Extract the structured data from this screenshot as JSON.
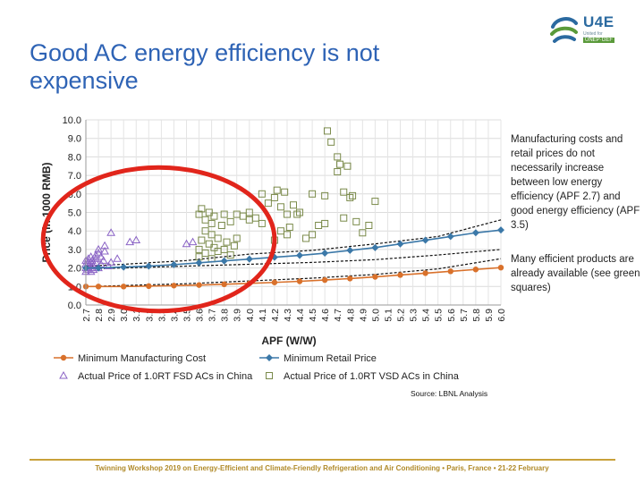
{
  "slide": {
    "title": "Good AC energy efficiency is not expensive",
    "logo": {
      "main": "U4E",
      "sub": "United for Efficiency",
      "tag": "UNEP·GEF"
    },
    "note1": "Manufacturing costs and retail prices do not necessarily increase between low energy efficiency (APF 2.7) and good energy efficiency (APF 3.5)",
    "note2": "Many efficient products are already available (see green squares)",
    "source": "Source: LBNL Analysis",
    "footer": "Twinning Workshop 2019 on Energy-Efficient and Climate-Friendly Refrigeration and Air Conditioning • Paris, France • 21-22 February"
  },
  "colors": {
    "title": "#2e63b5",
    "mfg": "#d9712b",
    "retail": "#3b78a8",
    "fsd": "#8a63c5",
    "vsd": "#7a8a4a",
    "circle": "#e1251b",
    "footer_line": "#c8a13a"
  },
  "chart_data": {
    "type": "scatter",
    "xlabel": "APF (W/W)",
    "ylabel": "Price (in 1000 RMB)",
    "ylim": [
      0,
      10
    ],
    "yticks": [
      "0.0",
      "1.0",
      "2.0",
      "3.0",
      "4.0",
      "5.0",
      "6.0",
      "7.0",
      "8.0",
      "9.0",
      "10.0"
    ],
    "xticks": [
      "2.7",
      "2.8",
      "2.9",
      "3.0",
      "3.1",
      "3.2",
      "3.3",
      "3.4",
      "3.5",
      "3.6",
      "3.7",
      "3.8",
      "3.9",
      "4.0",
      "4.1",
      "4.2",
      "4.3",
      "4.4",
      "4.5",
      "4.6",
      "4.7",
      "4.8",
      "4.9",
      "5.0",
      "5.1",
      "5.2",
      "5.3",
      "5.4",
      "5.5",
      "5.6",
      "5.7",
      "5.8",
      "5.9",
      "6.0"
    ],
    "grid": true,
    "series": [
      {
        "name": "Minimum Manufacturing Cost",
        "kind": "line-marker",
        "x": [
          2.7,
          2.8,
          3.0,
          3.2,
          3.4,
          3.6,
          3.8,
          4.0,
          4.2,
          4.4,
          4.6,
          4.8,
          5.0,
          5.2,
          5.4,
          5.6,
          5.8,
          6.0
        ],
        "y": [
          1.0,
          1.0,
          1.0,
          1.02,
          1.05,
          1.08,
          1.12,
          1.17,
          1.22,
          1.28,
          1.35,
          1.43,
          1.52,
          1.62,
          1.72,
          1.82,
          1.92,
          2.02
        ]
      },
      {
        "name": "Minimum Retail Price",
        "kind": "line-marker",
        "x": [
          2.7,
          2.8,
          3.0,
          3.2,
          3.4,
          3.6,
          3.8,
          4.0,
          4.2,
          4.4,
          4.6,
          4.8,
          5.0,
          5.2,
          5.4,
          5.6,
          5.8,
          6.0
        ],
        "y": [
          2.0,
          2.0,
          2.05,
          2.1,
          2.18,
          2.28,
          2.38,
          2.48,
          2.58,
          2.68,
          2.8,
          2.95,
          3.1,
          3.3,
          3.5,
          3.7,
          3.9,
          4.05
        ]
      },
      {
        "name": "Actual Price of 1.0RT FSD ACs in China",
        "kind": "triangle",
        "x": [
          2.7,
          2.7,
          2.7,
          2.7,
          2.72,
          2.72,
          2.72,
          2.72,
          2.74,
          2.74,
          2.74,
          2.75,
          2.75,
          2.76,
          2.76,
          2.78,
          2.78,
          2.78,
          2.8,
          2.8,
          2.8,
          2.82,
          2.82,
          2.84,
          2.85,
          2.85,
          2.88,
          2.9,
          2.9,
          2.95,
          3.05,
          3.1,
          3.5,
          3.55
        ],
        "y": [
          1.8,
          2.0,
          2.2,
          2.4,
          1.9,
          2.1,
          2.3,
          2.5,
          1.8,
          2.0,
          2.6,
          2.2,
          2.4,
          1.9,
          2.1,
          2.3,
          2.5,
          2.7,
          2.0,
          2.8,
          3.0,
          2.2,
          2.6,
          2.4,
          2.9,
          3.2,
          2.1,
          2.3,
          3.9,
          2.5,
          3.4,
          3.5,
          3.3,
          3.4
        ]
      },
      {
        "name": "Actual Price of 1.0RT VSD ACs in China",
        "kind": "square",
        "x": [
          3.6,
          3.6,
          3.6,
          3.62,
          3.62,
          3.65,
          3.65,
          3.65,
          3.68,
          3.68,
          3.7,
          3.7,
          3.7,
          3.72,
          3.72,
          3.75,
          3.75,
          3.78,
          3.8,
          3.8,
          3.82,
          3.85,
          3.85,
          3.88,
          3.9,
          3.9,
          3.95,
          4.0,
          4.0,
          4.05,
          4.1,
          4.1,
          4.15,
          4.2,
          4.2,
          4.22,
          4.25,
          4.25,
          4.28,
          4.3,
          4.3,
          4.32,
          4.35,
          4.38,
          4.4,
          4.45,
          4.5,
          4.5,
          4.55,
          4.6,
          4.6,
          4.62,
          4.65,
          4.7,
          4.7,
          4.72,
          4.75,
          4.75,
          4.78,
          4.8,
          4.82,
          4.85,
          4.9,
          4.95,
          5.0
        ],
        "y": [
          2.6,
          3.0,
          4.9,
          3.5,
          5.2,
          2.8,
          4.0,
          4.6,
          3.3,
          5.0,
          2.5,
          3.8,
          4.4,
          3.1,
          4.8,
          2.9,
          3.6,
          4.3,
          3.0,
          4.9,
          3.4,
          2.7,
          4.5,
          3.2,
          3.6,
          4.9,
          4.8,
          4.6,
          5.0,
          4.7,
          4.4,
          6.0,
          5.5,
          5.8,
          3.5,
          6.2,
          4.0,
          5.3,
          6.1,
          3.8,
          4.9,
          4.2,
          5.4,
          4.9,
          5.0,
          3.6,
          3.8,
          6.0,
          4.3,
          4.4,
          5.9,
          9.4,
          8.8,
          8.0,
          7.2,
          7.6,
          4.7,
          6.1,
          7.5,
          5.8,
          5.9,
          4.5,
          3.9,
          4.3,
          5.6
        ]
      }
    ],
    "bands": [
      {
        "name": "retail-upper",
        "x": [
          2.7,
          3.0,
          3.5,
          4.0,
          4.5,
          5.0,
          5.5,
          6.0
        ],
        "y": [
          2.1,
          2.2,
          2.4,
          2.75,
          2.95,
          3.3,
          3.7,
          4.6
        ]
      },
      {
        "name": "retail-lower",
        "x": [
          2.7,
          3.0,
          3.5,
          4.0,
          4.5,
          5.0,
          5.5,
          6.0
        ],
        "y": [
          1.95,
          2.0,
          2.1,
          2.2,
          2.3,
          2.45,
          2.7,
          3.0
        ]
      },
      {
        "name": "mfg-upper",
        "x": [
          2.7,
          3.0,
          3.5,
          4.0,
          4.5,
          5.0,
          5.5,
          6.0
        ],
        "y": [
          1.0,
          1.05,
          1.15,
          1.3,
          1.45,
          1.65,
          1.95,
          2.5
        ]
      }
    ],
    "highlight_circle": {
      "cx": 3.28,
      "cy": 3.55,
      "rx_data": 0.92,
      "ry_data": 6.3
    }
  }
}
